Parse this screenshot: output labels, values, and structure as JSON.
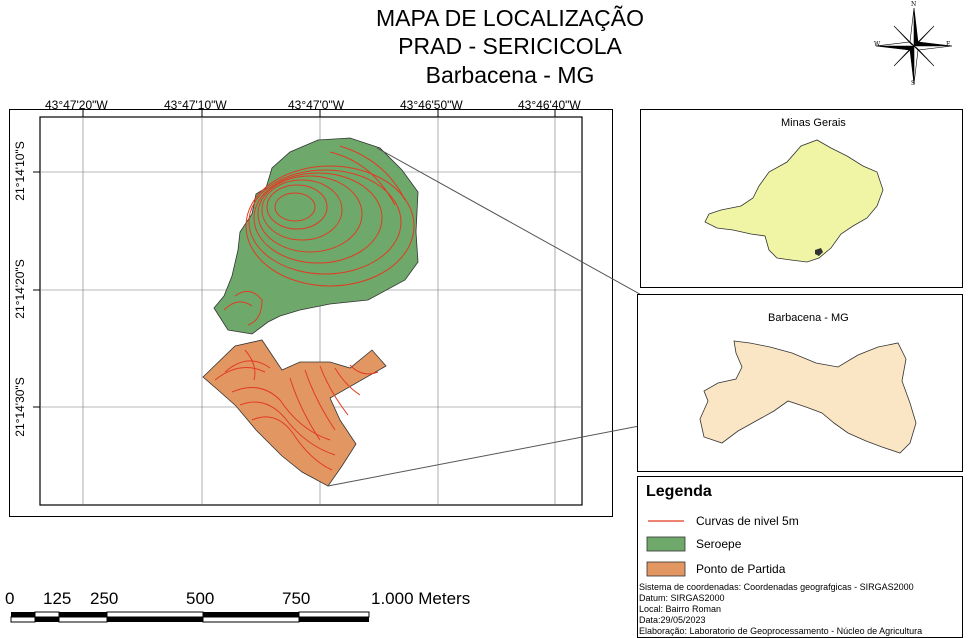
{
  "title": {
    "line1": "MAPA DE LOCALIZAÇÃO",
    "line2": "PRAD - SERICICOLA",
    "line3": "Barbacena - MG"
  },
  "compass": {
    "n": "N",
    "s": "S",
    "e": "E",
    "w": "W"
  },
  "grid": {
    "x_labels": [
      "43°47'20\"W",
      "43°47'10\"W",
      "43°47'0\"W",
      "43°46'50\"W",
      "43°46'40\"W"
    ],
    "y_labels": [
      "21°14'10\"S",
      "21°14'20\"S",
      "21°14'30\"S"
    ]
  },
  "inset_state": {
    "title": "Minas Gerais",
    "fill": "#f0f5a6"
  },
  "inset_city": {
    "title": "Barbacena - MG",
    "fill": "#fae6c4"
  },
  "areas": {
    "seroepe_fill": "#6ea96b",
    "partida_fill": "#e29763",
    "contour_color": "#e23a22"
  },
  "legend": {
    "title": "Legenda",
    "items": [
      {
        "label": "Curvas de nivel 5m"
      },
      {
        "label": "Seroepe"
      },
      {
        "label": "Ponto de Partida"
      }
    ],
    "meta": [
      "Sistema de coordenadas: Coordenadas geografgicas - SIRGAS2000",
      "Datum: SIRGAS2000",
      "Local: Bairro Roman",
      "Data:29/05/2023",
      "Elaboração: Laboratorio de Geoprocessamento - Núcleo de Agricultura"
    ]
  },
  "scalebar": {
    "labels": [
      "0",
      "125",
      "250",
      "500",
      "750",
      "1.000 Meters"
    ]
  }
}
